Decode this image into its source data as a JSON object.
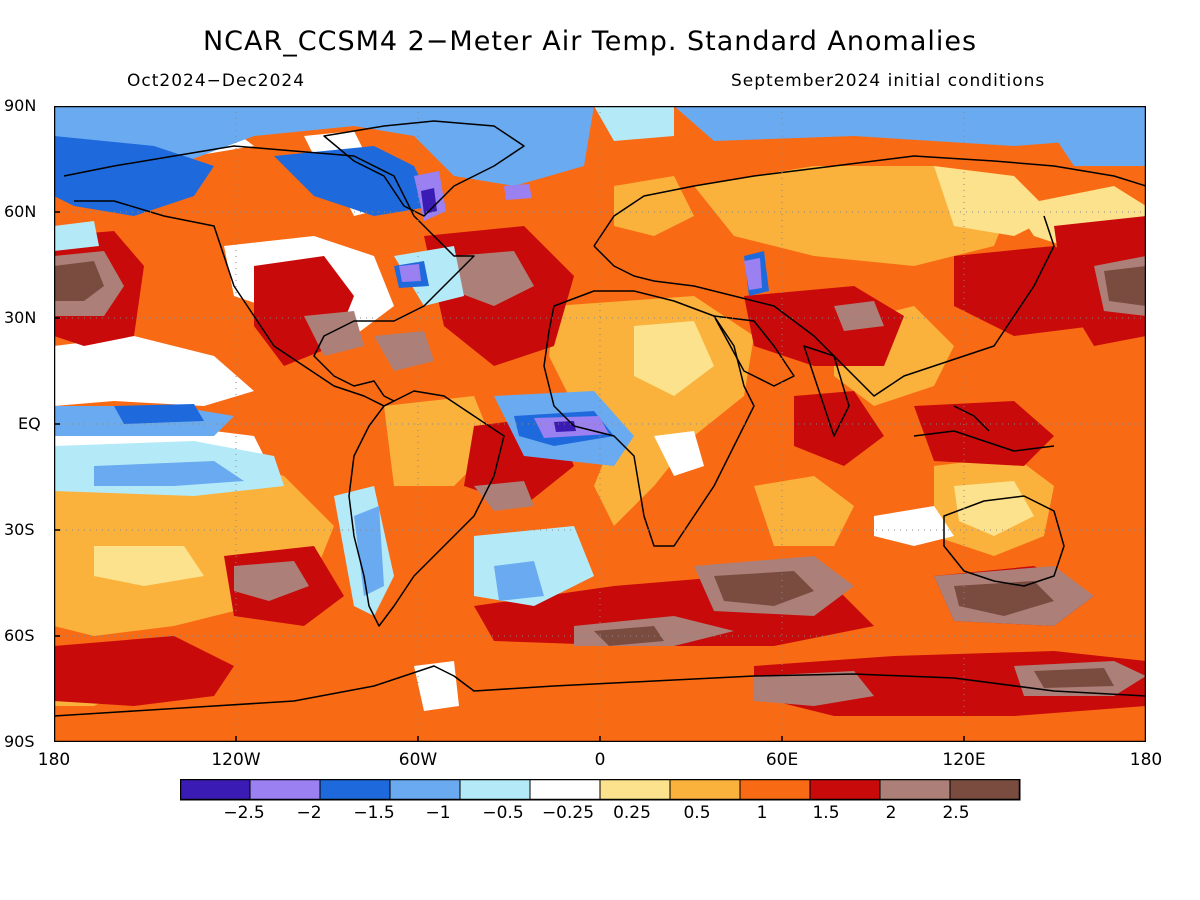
{
  "header": {
    "title": "NCAR_CCSM4 2−Meter Air Temp. Standard Anomalies",
    "period": "Oct2024−Dec2024",
    "init": "September2024 initial conditions"
  },
  "map": {
    "lat_labels": [
      "90N",
      "60N",
      "30N",
      "EQ",
      "30S",
      "60S",
      "90S"
    ],
    "lon_labels": [
      "180",
      "120W",
      "60W",
      "0",
      "60E",
      "120E",
      "180"
    ],
    "lat_range": [
      -90,
      90
    ],
    "lon_range": [
      -180,
      180
    ],
    "base_fill": "#f96a14",
    "coastline_color": "#000000"
  },
  "legend": {
    "labels": [
      "−2.5",
      "−2",
      "−1.5",
      "−1",
      "−0.5",
      "−0.25",
      "0.25",
      "0.5",
      "1",
      "1.5",
      "2",
      "2.5"
    ],
    "colors": [
      "#3a1cb4",
      "#9a80f0",
      "#1e6adc",
      "#6aaaf0",
      "#b4eaf8",
      "#ffffff",
      "#fce28c",
      "#fab23c",
      "#f96a14",
      "#c80a0a",
      "#ac8078",
      "#7a4c40"
    ]
  }
}
